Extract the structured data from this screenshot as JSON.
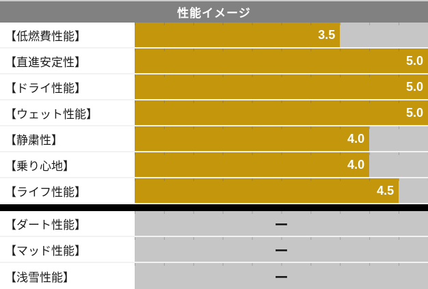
{
  "header": {
    "title": "性能イメージ"
  },
  "scale": {
    "min": 0,
    "max": 5
  },
  "colors": {
    "bar_gold": "#c4960c",
    "track_gray": "#c6c6c6",
    "header_bg": "#818181",
    "header_text": "#ffffff",
    "value_text": "#ffffff",
    "divider_black": "#000000",
    "label_text": "#1c1c1c"
  },
  "rows": [
    {
      "label": "【低燃費性能】",
      "value": 3.5,
      "display": "3.5"
    },
    {
      "label": "【直進安定性】",
      "value": 5.0,
      "display": "5.0"
    },
    {
      "label": "【ドライ性能】",
      "value": 5.0,
      "display": "5.0"
    },
    {
      "label": "【ウェット性能】",
      "value": 5.0,
      "display": "5.0"
    },
    {
      "label": "【静粛性】",
      "value": 4.0,
      "display": "4.0"
    },
    {
      "label": "【乗り心地】",
      "value": 4.0,
      "display": "4.0"
    },
    {
      "label": "【ライフ性能】",
      "value": 4.5,
      "display": "4.5"
    },
    {
      "label": "【ダート性能】",
      "value": null,
      "display": "ー"
    },
    {
      "label": "【マッド性能】",
      "value": null,
      "display": "ー"
    },
    {
      "label": "【浅雪性能】",
      "value": null,
      "display": "ー"
    }
  ],
  "chart_data": {
    "type": "bar",
    "orientation": "horizontal",
    "title": "性能イメージ",
    "categories": [
      "【低燃費性能】",
      "【直進安定性】",
      "【ドライ性能】",
      "【ウェット性能】",
      "【静粛性】",
      "【乗り心地】",
      "【ライフ性能】",
      "【ダート性能】",
      "【マッド性能】",
      "【浅雪性能】"
    ],
    "values": [
      3.5,
      5.0,
      5.0,
      5.0,
      4.0,
      4.0,
      4.5,
      null,
      null,
      null
    ],
    "value_labels": [
      "3.5",
      "5.0",
      "5.0",
      "5.0",
      "4.0",
      "4.0",
      "4.5",
      "ー",
      "ー",
      "ー"
    ],
    "xlabel": "",
    "ylabel": "",
    "xlim": [
      0,
      5
    ],
    "grid": "minor ticks every 0.5 at top edge of each track",
    "legend": "none",
    "notes": "Rows 8-10 are unrated (dash), separated from rated rows by a solid black divider bar"
  }
}
